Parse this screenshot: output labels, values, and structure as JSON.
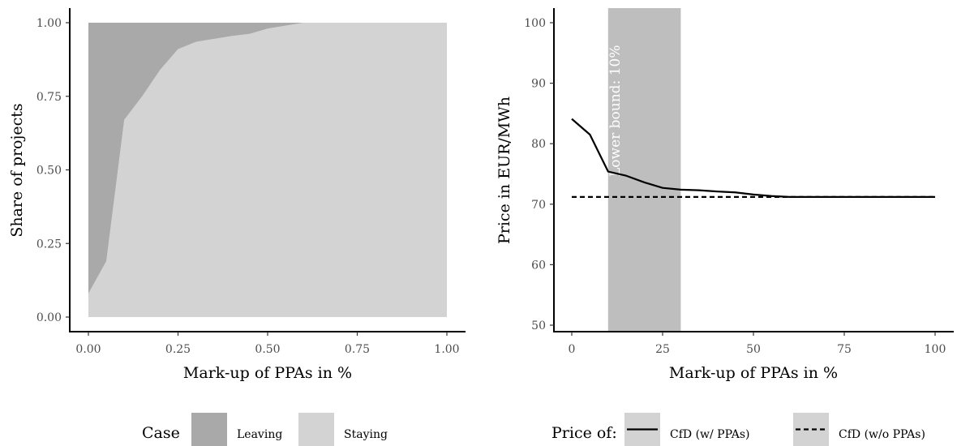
{
  "chart_data": [
    {
      "type": "area",
      "xlabel": "Mark-up of PPAs in %",
      "ylabel": "Share of projects",
      "xlim": [
        0,
        1
      ],
      "ylim": [
        0,
        1
      ],
      "x_ticks": [
        "0.00",
        "0.25",
        "0.50",
        "0.75",
        "1.00"
      ],
      "y_ticks": [
        "0.00",
        "0.25",
        "0.50",
        "0.75",
        "1.00"
      ],
      "stacked": true,
      "x": [
        0,
        0.05,
        0.1,
        0.15,
        0.2,
        0.25,
        0.3,
        0.35,
        0.4,
        0.45,
        0.5,
        0.55,
        0.6,
        0.65,
        0.7,
        0.75,
        0.8,
        0.85,
        0.9,
        0.95,
        1.0
      ],
      "series": [
        {
          "name": "Staying",
          "color": "#d3d3d3",
          "values": [
            0.08,
            0.19,
            0.67,
            0.75,
            0.84,
            0.91,
            0.935,
            0.945,
            0.955,
            0.962,
            0.98,
            0.99,
            1.0,
            1.0,
            1.0,
            1.0,
            1.0,
            1.0,
            1.0,
            1.0,
            1.0
          ]
        },
        {
          "name": "Leaving",
          "color": "#a9a9a9",
          "values": [
            0.92,
            0.81,
            0.33,
            0.25,
            0.16,
            0.09,
            0.065,
            0.055,
            0.045,
            0.038,
            0.02,
            0.01,
            0.0,
            0.0,
            0.0,
            0.0,
            0.0,
            0.0,
            0.0,
            0.0,
            0.0
          ]
        }
      ],
      "legend": {
        "title": "Case",
        "position": "bottom",
        "entries": [
          "Leaving",
          "Staying"
        ]
      },
      "grid": false
    },
    {
      "type": "line",
      "xlabel": "Mark-up of PPAs in %",
      "ylabel": "Price in EUR/MWh",
      "xlim": [
        -5,
        105
      ],
      "ylim": [
        49,
        103
      ],
      "x_ticks": [
        "0",
        "25",
        "50",
        "75",
        "100"
      ],
      "y_ticks": [
        "50",
        "60",
        "70",
        "80",
        "90",
        "100"
      ],
      "x": [
        0,
        5,
        10,
        15,
        20,
        25,
        30,
        35,
        40,
        45,
        50,
        55,
        60,
        65,
        70,
        75,
        80,
        85,
        90,
        95,
        100
      ],
      "series": [
        {
          "name": "CfD (w/ PPAs)",
          "dash": "solid",
          "color": "#000000",
          "values": [
            84.1,
            81.5,
            75.4,
            74.7,
            73.6,
            72.7,
            72.4,
            72.3,
            72.1,
            71.95,
            71.6,
            71.35,
            71.2,
            71.2,
            71.2,
            71.2,
            71.2,
            71.2,
            71.2,
            71.2,
            71.2
          ]
        },
        {
          "name": "CfD (w/o PPAs)",
          "dash": "dashed",
          "color": "#000000",
          "values": [
            71.2,
            71.2,
            71.2,
            71.2,
            71.2,
            71.2,
            71.2,
            71.2,
            71.2,
            71.2,
            71.2,
            71.2,
            71.2,
            71.2,
            71.2,
            71.2,
            71.2,
            71.2,
            71.2,
            71.2,
            71.2
          ]
        }
      ],
      "bands": [
        {
          "from": 10,
          "to": 30,
          "color": "#bebebe"
        }
      ],
      "annotations": [
        {
          "text": "Lower bound: 10%",
          "x": 10
        },
        {
          "text": "Upper bound: 30%",
          "x": 30
        }
      ],
      "legend": {
        "title": "Price of:",
        "position": "bottom",
        "entries": [
          "CfD (w/ PPAs)",
          "CfD (w/o PPAs)"
        ]
      },
      "grid": false
    }
  ]
}
